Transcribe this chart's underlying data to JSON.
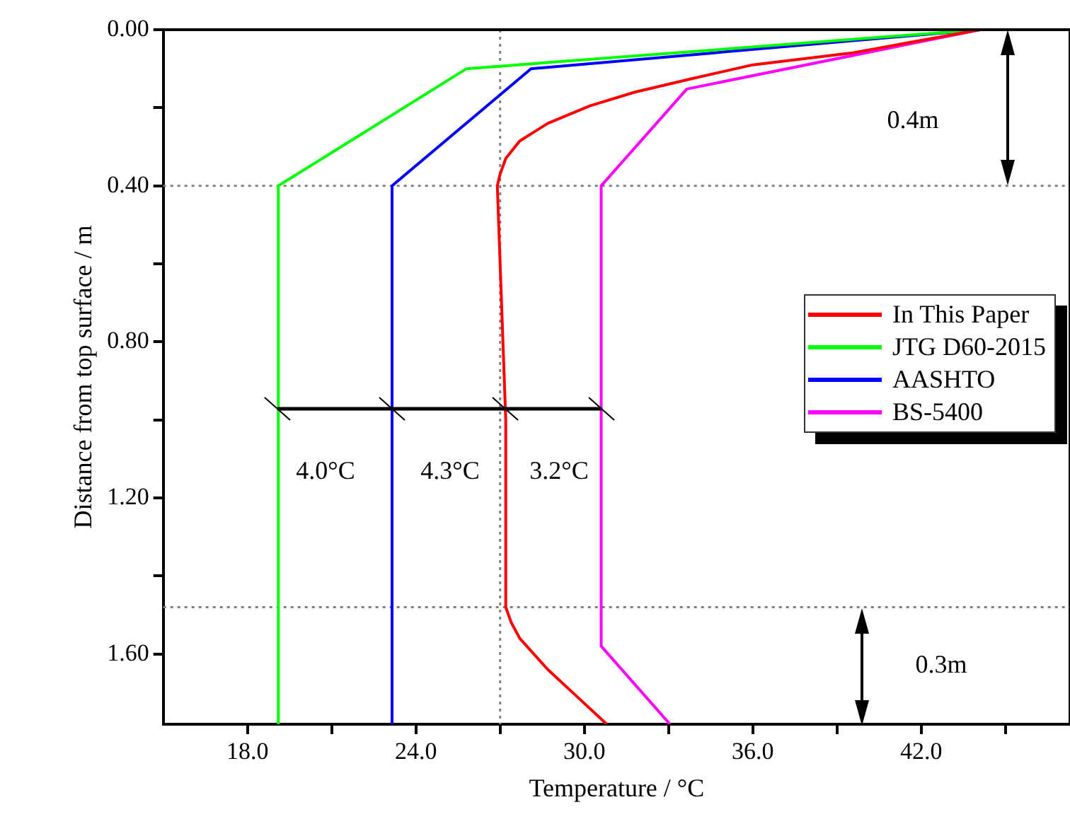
{
  "chart_data": {
    "type": "line",
    "xlabel": "Temperature / °C",
    "ylabel": "Distance from top surface / m",
    "xlim": [
      15,
      47.3
    ],
    "xticks": [
      {
        "value": 18,
        "label": "18.0"
      },
      {
        "value": 21,
        "label": null
      },
      {
        "value": 24,
        "label": "24.0"
      },
      {
        "value": 27,
        "label": null
      },
      {
        "value": 30,
        "label": "30.0"
      },
      {
        "value": 33,
        "label": null
      },
      {
        "value": 36,
        "label": "36.0"
      },
      {
        "value": 39,
        "label": null
      },
      {
        "value": 42,
        "label": "42.0"
      },
      {
        "value": 45,
        "label": null
      }
    ],
    "ylim": [
      1.78,
      0
    ],
    "yticks": [
      {
        "value": 0,
        "label": "0.00"
      },
      {
        "value": 0.2,
        "label": null
      },
      {
        "value": 0.4,
        "label": "0.40"
      },
      {
        "value": 0.6,
        "label": null
      },
      {
        "value": 0.8,
        "label": "0.80"
      },
      {
        "value": 1.0,
        "label": null
      },
      {
        "value": 1.2,
        "label": "1.20"
      },
      {
        "value": 1.4,
        "label": null
      },
      {
        "value": 1.6,
        "label": "1.60"
      }
    ],
    "grid": false,
    "legend": "right",
    "marker": "none",
    "line_style": "solid",
    "series": [
      {
        "name": "In This Paper",
        "color": "#ff0000",
        "x": [
          44.1,
          41.8,
          39.5,
          36.0,
          33.8,
          31.8,
          30.2,
          28.7,
          27.7,
          27.2,
          27.0,
          26.9,
          27.0,
          27.2,
          27.2,
          27.4,
          27.7,
          28.7,
          29.9,
          30.8
        ],
        "values": [
          0,
          0.03,
          0.06,
          0.09,
          0.126,
          0.16,
          0.195,
          0.24,
          0.285,
          0.33,
          0.37,
          0.4,
          0.6,
          1.0,
          1.48,
          1.52,
          1.56,
          1.64,
          1.72,
          1.78
        ]
      },
      {
        "name": "JTG D60-2015",
        "color": "#00ff00",
        "x": [
          44.1,
          25.8,
          19.1,
          19.1
        ],
        "values": [
          0,
          0.1,
          0.4,
          1.78
        ]
      },
      {
        "name": "AASHTO",
        "color": "#0000ff",
        "x": [
          44.1,
          28.1,
          23.15,
          23.15
        ],
        "values": [
          0,
          0.1,
          0.4,
          1.78
        ]
      },
      {
        "name": "BS-5400",
        "color": "#ff00ff",
        "x": [
          44.1,
          33.65,
          30.6,
          30.6,
          33.05
        ],
        "values": [
          0,
          0.152,
          0.4,
          1.58,
          1.78
        ]
      }
    ],
    "ref_lines": [
      {
        "axis": "y",
        "value": 0.4,
        "color": "#808080",
        "line_style": "dotted"
      },
      {
        "axis": "y",
        "value": 1.48,
        "color": "#808080",
        "line_style": "dotted"
      },
      {
        "axis": "x",
        "value": 27.0,
        "color": "#808080",
        "line_style": "dotted"
      }
    ],
    "annotations": [
      "0.4m",
      "0.3m",
      "4.0°C",
      "4.3°C",
      "3.2°C"
    ]
  }
}
